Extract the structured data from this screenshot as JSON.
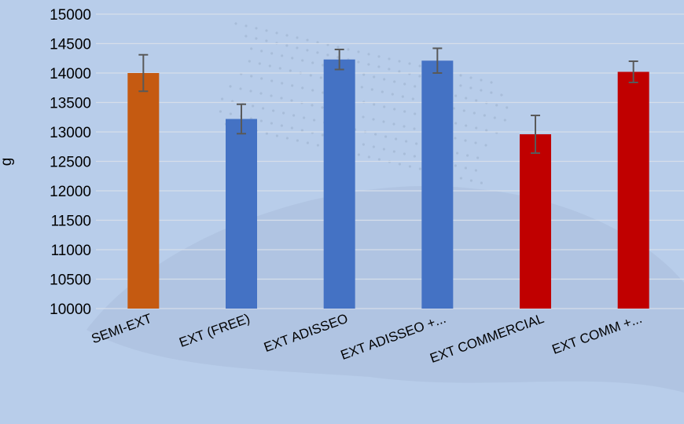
{
  "chart_data": {
    "type": "bar",
    "title": "",
    "xlabel": "",
    "ylabel": "g",
    "ylim": [
      10000,
      15000
    ],
    "yticks": [
      10000,
      10500,
      11000,
      11500,
      12000,
      12500,
      13000,
      13500,
      14000,
      14500,
      15000
    ],
    "grid": true,
    "legend": "none",
    "categories": [
      "SEMI-EXT",
      "EXT (FREE)",
      "EXT ADISSEO",
      "EXT ADISSEO +...",
      "EXT COMMERCIAL",
      "EXT COMM +..."
    ],
    "values": [
      14000,
      13220,
      14230,
      14210,
      12960,
      14020
    ],
    "error": [
      310,
      250,
      170,
      210,
      320,
      180
    ],
    "colors": [
      "#c55a11",
      "#4472c4",
      "#4472c4",
      "#4472c4",
      "#c00000",
      "#c00000"
    ]
  }
}
